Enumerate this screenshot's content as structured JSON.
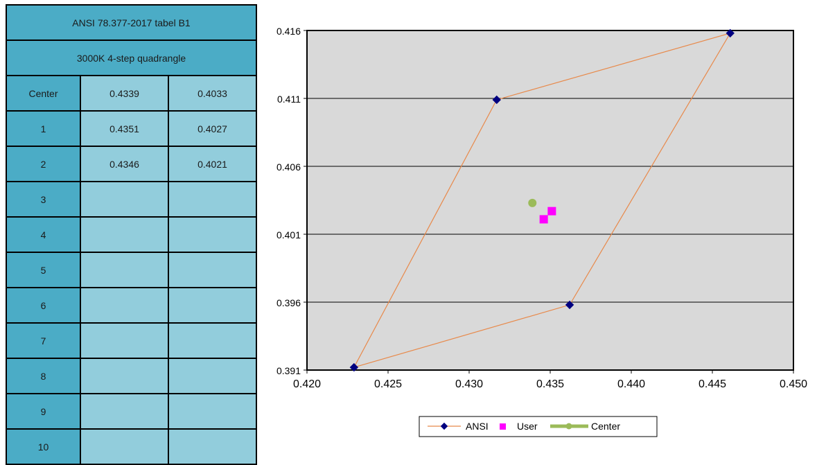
{
  "table": {
    "title": "ANSI 78.377-2017 tabel B1",
    "subtitle": "3000K 4-step quadrangle",
    "rows": [
      {
        "label": "Center",
        "x": "0.4339",
        "y": "0.4033"
      },
      {
        "label": "1",
        "x": "0.4351",
        "y": "0.4027"
      },
      {
        "label": "2",
        "x": "0.4346",
        "y": "0.4021"
      },
      {
        "label": "3",
        "x": "",
        "y": ""
      },
      {
        "label": "4",
        "x": "",
        "y": ""
      },
      {
        "label": "5",
        "x": "",
        "y": ""
      },
      {
        "label": "6",
        "x": "",
        "y": ""
      },
      {
        "label": "7",
        "x": "",
        "y": ""
      },
      {
        "label": "8",
        "x": "",
        "y": ""
      },
      {
        "label": "9",
        "x": "",
        "y": ""
      },
      {
        "label": "10",
        "x": "",
        "y": ""
      }
    ]
  },
  "chart_data": {
    "type": "scatter",
    "xlim": [
      0.42,
      0.45
    ],
    "ylim": [
      0.391,
      0.416
    ],
    "x_ticks": [
      "0.420",
      "0.425",
      "0.430",
      "0.435",
      "0.440",
      "0.445",
      "0.450"
    ],
    "y_ticks": [
      "0.391",
      "0.396",
      "0.401",
      "0.406",
      "0.411",
      "0.416"
    ],
    "grid": "horizontal",
    "legend_position": "bottom",
    "plot_background": "#d9d9d9",
    "series": [
      {
        "name": "ANSI",
        "style": "line-diamond",
        "line_color": "#e8894a",
        "marker_color": "#000080",
        "points": [
          [
            0.4229,
            0.3912
          ],
          [
            0.4317,
            0.4109
          ],
          [
            0.4461,
            0.4158
          ],
          [
            0.4362,
            0.3958
          ],
          [
            0.4229,
            0.3912
          ]
        ]
      },
      {
        "name": "User",
        "style": "square",
        "marker_color": "#ff00ff",
        "points": [
          [
            0.4351,
            0.4027
          ],
          [
            0.4346,
            0.4021
          ]
        ]
      },
      {
        "name": "Center",
        "style": "circle",
        "marker_color": "#9bbb59",
        "points": [
          [
            0.4339,
            0.4033
          ]
        ]
      }
    ]
  }
}
